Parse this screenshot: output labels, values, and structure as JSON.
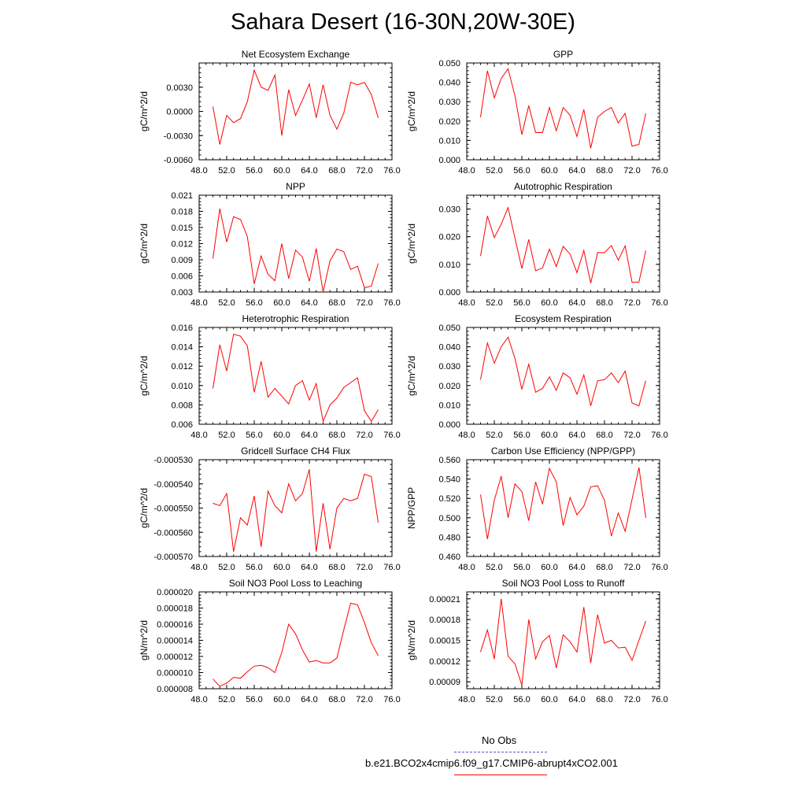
{
  "title": "Sahara Desert (16-30N,20W-30E)",
  "colors": {
    "series": "#ff0000",
    "obs": "#5555cc",
    "axis": "#000000"
  },
  "legend": {
    "obs_label": "No Obs",
    "model_label": "b.e21.BCO2x4cmip6.f09_g17.CMIP6-abrupt4xCO2.001"
  },
  "chart_data": [
    {
      "type": "line",
      "title": "Net Ecosystem Exchange",
      "ylabel": "gC/m^2/d",
      "xlim": [
        48,
        76
      ],
      "ylim": [
        -0.006,
        0.006
      ],
      "xticks": [
        "48.0",
        "52.0",
        "56.0",
        "60.0",
        "64.0",
        "68.0",
        "72.0",
        "76.0"
      ],
      "yticks": [
        "-0.0060",
        "-0.0030",
        "0.0000",
        "0.0030"
      ],
      "yticks_values": [
        -0.006,
        -0.003,
        0,
        0.003
      ],
      "x": [
        50,
        51,
        52,
        53,
        54,
        55,
        56,
        57,
        58,
        59,
        60,
        61,
        62,
        63,
        64,
        65,
        66,
        67,
        68,
        69,
        70,
        71,
        72,
        73,
        74
      ],
      "values": [
        0.0006,
        -0.0041,
        -0.0005,
        -0.0014,
        -0.0009,
        0.0012,
        0.0051,
        0.003,
        0.0026,
        0.0045,
        -0.003,
        0.0027,
        -0.0005,
        0.0014,
        0.0034,
        -0.0008,
        0.0033,
        -0.0005,
        -0.0022,
        -0.0002,
        0.0036,
        0.0033,
        0.0036,
        0.0021,
        -0.0008
      ]
    },
    {
      "type": "line",
      "title": "GPP",
      "ylabel": "gC/m^2/d",
      "xlim": [
        48,
        76
      ],
      "ylim": [
        0,
        0.05
      ],
      "xticks": [
        "48.0",
        "52.0",
        "56.0",
        "60.0",
        "64.0",
        "68.0",
        "72.0",
        "76.0"
      ],
      "yticks": [
        "0.000",
        "0.010",
        "0.020",
        "0.030",
        "0.040",
        "0.050"
      ],
      "yticks_values": [
        0,
        0.01,
        0.02,
        0.03,
        0.04,
        0.05
      ],
      "x": [
        50,
        51,
        52,
        53,
        54,
        55,
        56,
        57,
        58,
        59,
        60,
        61,
        62,
        63,
        64,
        65,
        66,
        67,
        68,
        69,
        70,
        71,
        72,
        73,
        74
      ],
      "values": [
        0.022,
        0.046,
        0.032,
        0.042,
        0.047,
        0.033,
        0.013,
        0.028,
        0.014,
        0.014,
        0.027,
        0.015,
        0.027,
        0.023,
        0.012,
        0.026,
        0.006,
        0.022,
        0.025,
        0.027,
        0.019,
        0.024,
        0.007,
        0.008,
        0.024
      ]
    },
    {
      "type": "line",
      "title": "NPP",
      "ylabel": "gC/m^2/d",
      "xlim": [
        48,
        76
      ],
      "ylim": [
        0.003,
        0.021
      ],
      "xticks": [
        "48.0",
        "52.0",
        "56.0",
        "60.0",
        "64.0",
        "68.0",
        "72.0",
        "76.0"
      ],
      "yticks": [
        "0.003",
        "0.006",
        "0.009",
        "0.012",
        "0.015",
        "0.018",
        "0.021"
      ],
      "yticks_values": [
        0.003,
        0.006,
        0.009,
        0.012,
        0.015,
        0.018,
        0.021
      ],
      "x": [
        50,
        51,
        52,
        53,
        54,
        55,
        56,
        57,
        58,
        59,
        60,
        61,
        62,
        63,
        64,
        65,
        66,
        67,
        68,
        69,
        70,
        71,
        72,
        73,
        74
      ],
      "values": [
        0.0092,
        0.0185,
        0.0123,
        0.017,
        0.0165,
        0.0133,
        0.0045,
        0.0097,
        0.0063,
        0.0051,
        0.012,
        0.0055,
        0.0108,
        0.0095,
        0.005,
        0.0111,
        0.003,
        0.0088,
        0.011,
        0.0105,
        0.0072,
        0.0078,
        0.0038,
        0.0041,
        0.0083
      ]
    },
    {
      "type": "line",
      "title": "Autotrophic Respiration",
      "ylabel": "gC/m^2/d",
      "xlim": [
        48,
        76
      ],
      "ylim": [
        0,
        0.035
      ],
      "xticks": [
        "48.0",
        "52.0",
        "56.0",
        "60.0",
        "64.0",
        "68.0",
        "72.0",
        "76.0"
      ],
      "yticks": [
        "0.000",
        "0.010",
        "0.020",
        "0.030"
      ],
      "yticks_values": [
        0,
        0.01,
        0.02,
        0.03
      ],
      "x": [
        50,
        51,
        52,
        53,
        54,
        55,
        56,
        57,
        58,
        59,
        60,
        61,
        62,
        63,
        64,
        65,
        66,
        67,
        68,
        69,
        70,
        71,
        72,
        73,
        74
      ],
      "values": [
        0.013,
        0.0275,
        0.0197,
        0.0245,
        0.0305,
        0.0195,
        0.0085,
        0.019,
        0.0077,
        0.0087,
        0.0155,
        0.0092,
        0.0165,
        0.0137,
        0.007,
        0.015,
        0.0032,
        0.0143,
        0.0142,
        0.0168,
        0.0115,
        0.0167,
        0.0035,
        0.0036,
        0.015
      ]
    },
    {
      "type": "line",
      "title": "Heterotrophic Respiration",
      "ylabel": "gC/m^2/d",
      "xlim": [
        48,
        76
      ],
      "ylim": [
        0.006,
        0.016
      ],
      "xticks": [
        "48.0",
        "52.0",
        "56.0",
        "60.0",
        "64.0",
        "68.0",
        "72.0",
        "76.0"
      ],
      "yticks": [
        "0.006",
        "0.008",
        "0.010",
        "0.012",
        "0.014",
        "0.016"
      ],
      "yticks_values": [
        0.006,
        0.008,
        0.01,
        0.012,
        0.014,
        0.016
      ],
      "x": [
        50,
        51,
        52,
        53,
        54,
        55,
        56,
        57,
        58,
        59,
        60,
        61,
        62,
        63,
        64,
        65,
        66,
        67,
        68,
        69,
        70,
        71,
        72,
        73,
        74
      ],
      "values": [
        0.0097,
        0.0142,
        0.0115,
        0.0153,
        0.0151,
        0.0141,
        0.0093,
        0.0125,
        0.0088,
        0.0097,
        0.0089,
        0.0081,
        0.01,
        0.0105,
        0.0085,
        0.0102,
        0.0063,
        0.008,
        0.0087,
        0.0098,
        0.0103,
        0.0108,
        0.0074,
        0.0063,
        0.0075
      ]
    },
    {
      "type": "line",
      "title": "Ecosystem Respiration",
      "ylabel": "gC/m^2/d",
      "xlim": [
        48,
        76
      ],
      "ylim": [
        0,
        0.05
      ],
      "xticks": [
        "48.0",
        "52.0",
        "56.0",
        "60.0",
        "64.0",
        "68.0",
        "72.0",
        "76.0"
      ],
      "yticks": [
        "0.000",
        "0.010",
        "0.020",
        "0.030",
        "0.040",
        "0.050"
      ],
      "yticks_values": [
        0,
        0.01,
        0.02,
        0.03,
        0.04,
        0.05
      ],
      "x": [
        50,
        51,
        52,
        53,
        54,
        55,
        56,
        57,
        58,
        59,
        60,
        61,
        62,
        63,
        64,
        65,
        66,
        67,
        68,
        69,
        70,
        71,
        72,
        73,
        74
      ],
      "values": [
        0.023,
        0.042,
        0.0315,
        0.04,
        0.045,
        0.034,
        0.018,
        0.031,
        0.0165,
        0.0185,
        0.0245,
        0.0175,
        0.0265,
        0.024,
        0.0155,
        0.0255,
        0.0095,
        0.0225,
        0.023,
        0.0265,
        0.0215,
        0.0275,
        0.011,
        0.0095,
        0.0225
      ]
    },
    {
      "type": "line",
      "title": "Gridcell Surface CH4 Flux",
      "ylabel": "gC/m^2/d",
      "xlim": [
        48,
        76
      ],
      "ylim": [
        -0.00057,
        -0.00053
      ],
      "xticks": [
        "48.0",
        "52.0",
        "56.0",
        "60.0",
        "64.0",
        "68.0",
        "72.0",
        "76.0"
      ],
      "yticks": [
        "-0.000570",
        "-0.000560",
        "-0.000550",
        "-0.000540",
        "-0.000530"
      ],
      "yticks_values": [
        -0.00057,
        -0.00056,
        -0.00055,
        -0.00054,
        -0.00053
      ],
      "x": [
        50,
        51,
        52,
        53,
        54,
        55,
        56,
        57,
        58,
        59,
        60,
        61,
        62,
        63,
        64,
        65,
        66,
        67,
        68,
        69,
        70,
        71,
        72,
        73,
        74
      ],
      "values": [
        -0.000548,
        -0.000549,
        -0.000544,
        -0.000568,
        -0.000554,
        -0.000557,
        -0.000545,
        -0.000566,
        -0.000543,
        -0.000549,
        -0.000552,
        -0.00054,
        -0.000547,
        -0.000544,
        -0.000534,
        -0.000568,
        -0.000548,
        -0.000567,
        -0.00055,
        -0.000546,
        -0.000547,
        -0.000546,
        -0.000536,
        -0.000537,
        -0.000556
      ]
    },
    {
      "type": "line",
      "title": "Carbon Use Efficiency (NPP/GPP)",
      "ylabel": "NPP/GPP",
      "xlim": [
        48,
        76
      ],
      "ylim": [
        0.46,
        0.56
      ],
      "xticks": [
        "48.0",
        "52.0",
        "56.0",
        "60.0",
        "64.0",
        "68.0",
        "72.0",
        "76.0"
      ],
      "yticks": [
        "0.460",
        "0.480",
        "0.500",
        "0.520",
        "0.540",
        "0.560"
      ],
      "yticks_values": [
        0.46,
        0.48,
        0.5,
        0.52,
        0.54,
        0.56
      ],
      "x": [
        50,
        51,
        52,
        53,
        54,
        55,
        56,
        57,
        58,
        59,
        60,
        61,
        62,
        63,
        64,
        65,
        66,
        67,
        68,
        69,
        70,
        71,
        72,
        73,
        74
      ],
      "values": [
        0.524,
        0.478,
        0.518,
        0.543,
        0.5,
        0.535,
        0.527,
        0.497,
        0.537,
        0.514,
        0.551,
        0.537,
        0.492,
        0.521,
        0.503,
        0.512,
        0.532,
        0.533,
        0.518,
        0.481,
        0.505,
        0.486,
        0.519,
        0.552,
        0.5
      ]
    },
    {
      "type": "line",
      "title": "Soil NO3 Pool Loss to Leaching",
      "ylabel": "gN/m^2/d",
      "xlim": [
        48,
        76
      ],
      "ylim": [
        8e-06,
        2e-05
      ],
      "xticks": [
        "48.0",
        "52.0",
        "56.0",
        "60.0",
        "64.0",
        "68.0",
        "72.0",
        "76.0"
      ],
      "yticks": [
        "0.000008",
        "0.000010",
        "0.000012",
        "0.000014",
        "0.000016",
        "0.000018",
        "0.000020"
      ],
      "yticks_values": [
        8e-06,
        1e-05,
        1.2e-05,
        1.4e-05,
        1.6e-05,
        1.8e-05,
        2e-05
      ],
      "x": [
        50,
        51,
        52,
        53,
        54,
        55,
        56,
        57,
        58,
        59,
        60,
        61,
        62,
        63,
        64,
        65,
        66,
        67,
        68,
        69,
        70,
        71,
        72,
        73,
        74
      ],
      "values": [
        9.2e-06,
        8.3e-06,
        8.7e-06,
        9.4e-06,
        9.3e-06,
        1.01e-05,
        1.08e-05,
        1.09e-05,
        1.06e-05,
        1e-05,
        1.25e-05,
        1.6e-05,
        1.48e-05,
        1.28e-05,
        1.13e-05,
        1.15e-05,
        1.12e-05,
        1.12e-05,
        1.18e-05,
        1.53e-05,
        1.86e-05,
        1.84e-05,
        1.62e-05,
        1.37e-05,
        1.21e-05
      ]
    },
    {
      "type": "line",
      "title": "Soil NO3 Pool Loss to Runoff",
      "ylabel": "gN/m^2/d",
      "xlim": [
        48,
        76
      ],
      "ylim": [
        8e-05,
        0.00022
      ],
      "xticks": [
        "48.0",
        "52.0",
        "56.0",
        "60.0",
        "64.0",
        "68.0",
        "72.0",
        "76.0"
      ],
      "yticks": [
        "0.00009",
        "0.00012",
        "0.00015",
        "0.00018",
        "0.00021"
      ],
      "yticks_values": [
        9e-05,
        0.00012,
        0.00015,
        0.00018,
        0.00021
      ],
      "x": [
        50,
        51,
        52,
        53,
        54,
        55,
        56,
        57,
        58,
        59,
        60,
        61,
        62,
        63,
        64,
        65,
        66,
        67,
        68,
        69,
        70,
        71,
        72,
        73,
        74
      ],
      "values": [
        0.000133,
        0.000165,
        0.000123,
        0.00021,
        0.000127,
        0.000116,
        8.5e-05,
        0.00018,
        0.000123,
        0.000148,
        0.000157,
        0.00011,
        0.000158,
        0.000148,
        0.000133,
        0.000198,
        0.000117,
        0.000187,
        0.000146,
        0.00015,
        0.000139,
        0.00014,
        0.000121,
        0.00015,
        0.000178
      ]
    }
  ]
}
